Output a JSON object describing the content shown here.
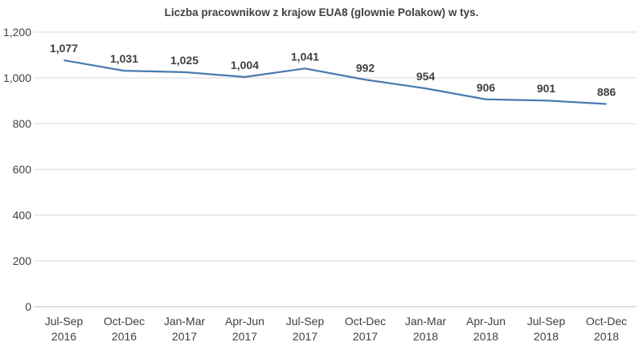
{
  "chart_data": {
    "type": "line",
    "title": "Liczba pracownikow z krajow EUA8 (glownie Polakow) w tys.",
    "categories": [
      [
        "Jul-Sep",
        "2016"
      ],
      [
        "Oct-Dec",
        "2016"
      ],
      [
        "Jan-Mar",
        "2017"
      ],
      [
        "Apr-Jun",
        "2017"
      ],
      [
        "Jul-Sep",
        "2017"
      ],
      [
        "Oct-Dec",
        "2017"
      ],
      [
        "Jan-Mar",
        "2018"
      ],
      [
        "Apr-Jun",
        "2018"
      ],
      [
        "Jul-Sep",
        "2018"
      ],
      [
        "Oct-Dec",
        "2018"
      ]
    ],
    "series": [
      {
        "name": "EUA8",
        "values": [
          1077,
          1031,
          1025,
          1004,
          1041,
          992,
          954,
          906,
          901,
          886
        ],
        "labels": [
          "1,077",
          "1,031",
          "1,025",
          "1,004",
          "1,041",
          "992",
          "954",
          "906",
          "901",
          "886"
        ],
        "color": "#4a7ab0"
      }
    ],
    "ylim": [
      0,
      1200
    ],
    "yticks": [
      0,
      200,
      400,
      600,
      800,
      1000,
      1200
    ],
    "ytick_labels": [
      "0",
      "200",
      "400",
      "600",
      "800",
      "1,000",
      "1,200"
    ],
    "grid": true,
    "xlabel": "",
    "ylabel": ""
  }
}
